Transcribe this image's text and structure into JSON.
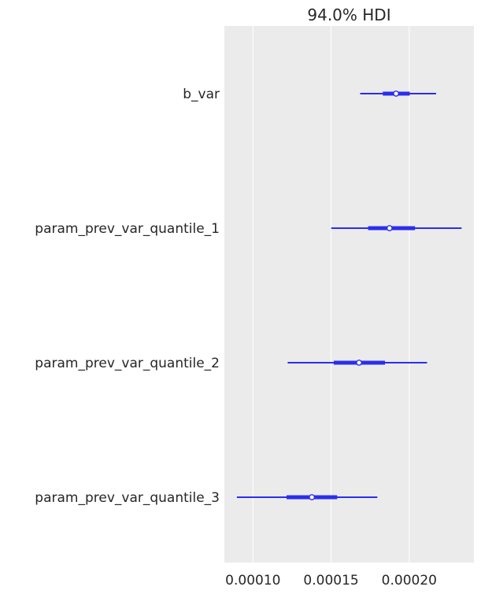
{
  "chart_data": {
    "type": "forest",
    "title": "94.0% HDI",
    "xlabel": "",
    "ylabel": "",
    "xlim": [
      8.17e-05,
      0.0002414
    ],
    "x_ticks": [
      0.0001,
      0.00015,
      0.0002
    ],
    "x_tick_labels": [
      "0.00010",
      "0.00015",
      "0.00020"
    ],
    "grid": "vertical",
    "colors": {
      "panel_background": "#ebebeb",
      "grid_line": "#ffffff",
      "interval": "#2a2eec",
      "point_fill": "#ffffff",
      "text": "#262626"
    },
    "series": [
      {
        "name": "b_var",
        "hdi_low": 0.0001686,
        "hdi_high": 0.0002172,
        "iqr_low": 0.0001831,
        "iqr_high": 0.0002003,
        "point": 0.0001916
      },
      {
        "name": "param_prev_var_quantile_1",
        "hdi_low": 0.0001501,
        "hdi_high": 0.0002335,
        "iqr_low": 0.0001737,
        "iqr_high": 0.0002037,
        "point": 0.0001874
      },
      {
        "name": "param_prev_var_quantile_2",
        "hdi_low": 0.0001222,
        "hdi_high": 0.0002114,
        "iqr_low": 0.0001517,
        "iqr_high": 0.0001845,
        "point": 0.0001679
      },
      {
        "name": "param_prev_var_quantile_3",
        "hdi_low": 8.97e-05,
        "hdi_high": 0.0001796,
        "iqr_low": 0.0001215,
        "iqr_high": 0.0001539,
        "point": 0.0001377
      }
    ]
  }
}
